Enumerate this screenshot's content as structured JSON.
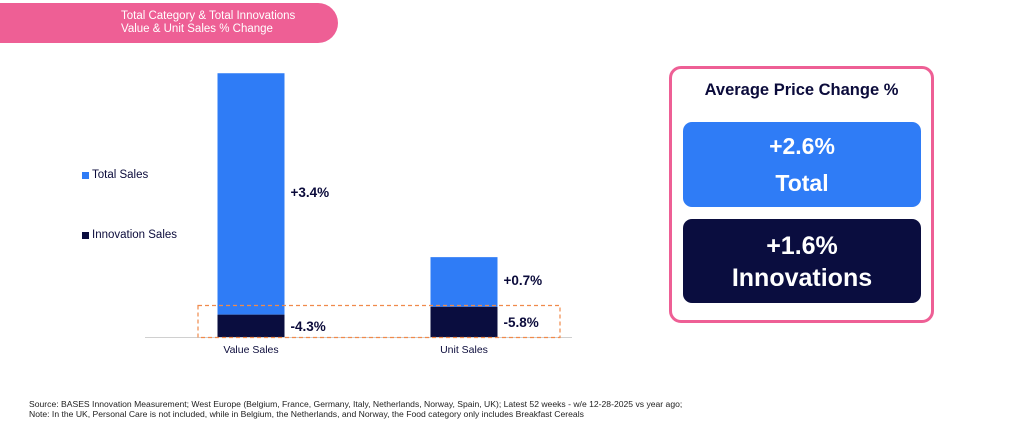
{
  "header": {
    "line1": "Total Category & Total Innovations",
    "line2": "Value & Unit Sales % Change"
  },
  "legend": {
    "total": "Total Sales",
    "innovation": "Innovation Sales"
  },
  "colors": {
    "total": "#2f7cf6",
    "innovation": "#0a0d3f",
    "accent": "#ee5f95",
    "highlight": "#f08a4b"
  },
  "chart_data": {
    "type": "bar",
    "categories": [
      "Value Sales",
      "Unit Sales"
    ],
    "series": [
      {
        "name": "Total Sales",
        "values": [
          3.4,
          0.7
        ],
        "labels": [
          "+3.4%",
          "+0.7%"
        ]
      },
      {
        "name": "Innovation Sales",
        "values": [
          -4.3,
          -5.8
        ],
        "labels": [
          "-4.3%",
          "-5.8%"
        ]
      }
    ],
    "title": "Total Category & Total Innovations Value & Unit Sales % Change",
    "legend_position": "left",
    "grid": false
  },
  "price_panel": {
    "title": "Average Price Change %",
    "total_value": "+2.6%",
    "total_label": "Total",
    "innovation_value": "+1.6%",
    "innovation_label": "Innovations"
  },
  "footnote": {
    "line1": "Source: BASES Innovation Measurement; West Europe (Belgium, France, Germany, Italy, Netherlands, Norway, Spain, UK); Latest 52 weeks - w/e 12-28-2025 vs year ago;",
    "line2": "Note: In the UK, Personal Care is not included, while in Belgium, the Netherlands, and Norway, the Food category only includes Breakfast Cereals"
  }
}
